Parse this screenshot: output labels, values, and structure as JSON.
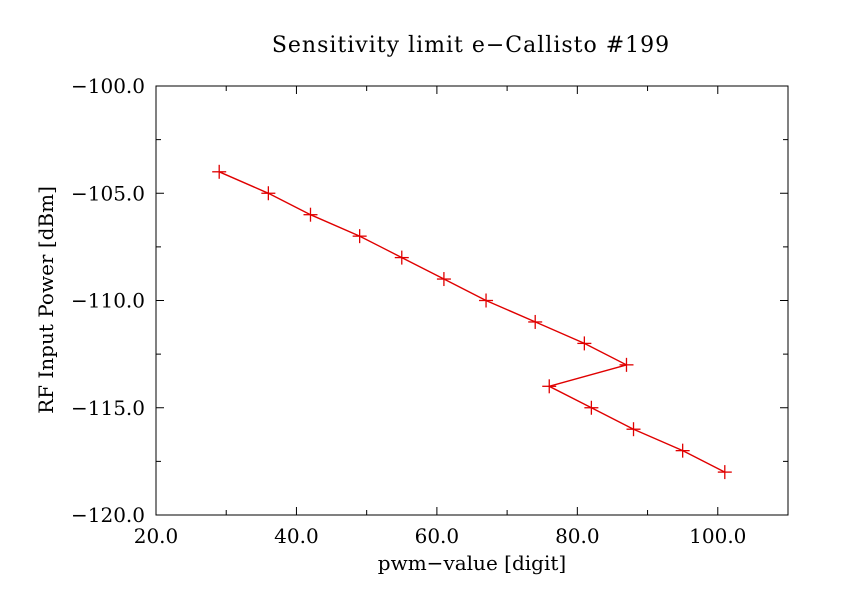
{
  "chart_data": {
    "type": "line",
    "title": "Sensitivity limit e−Callisto #199",
    "xlabel": "pwm−value [digit]",
    "ylabel": "RF Input Power [dBm]",
    "xlim": [
      20,
      110
    ],
    "ylim": [
      -120,
      -100
    ],
    "x_ticks": [
      20,
      40,
      60,
      80,
      100
    ],
    "x_tick_labels": [
      "20.0",
      "40.0",
      "60.0",
      "80.0",
      "100.0"
    ],
    "y_ticks": [
      -100,
      -105,
      -110,
      -115,
      -120
    ],
    "y_tick_labels": [
      "−100.0",
      "−105.0",
      "−110.0",
      "−115.0",
      "−120.0"
    ],
    "grid": false,
    "series": [
      {
        "color": "#e00000",
        "marker": "plus",
        "x": [
          29,
          36,
          42,
          49,
          55,
          61,
          67,
          74,
          81,
          87,
          76,
          82,
          88,
          95,
          101
        ],
        "y": [
          -104,
          -105,
          -106,
          -107,
          -108,
          -109,
          -110,
          -111,
          -112,
          -113,
          -114,
          -115,
          -116,
          -117,
          -118
        ]
      }
    ]
  }
}
